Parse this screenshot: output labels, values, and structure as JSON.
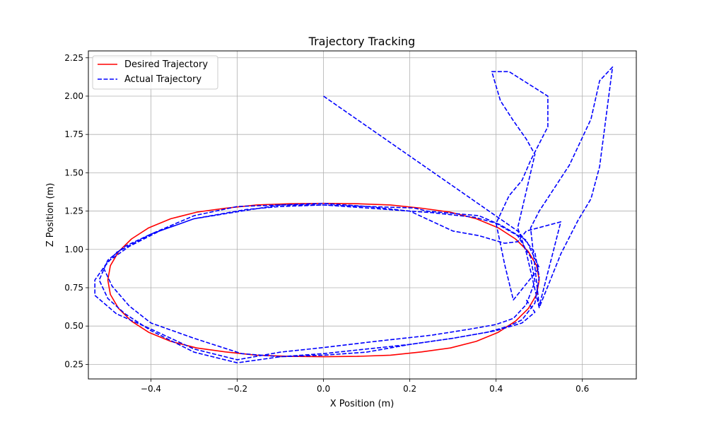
{
  "chart_data": {
    "type": "line",
    "title": "Trajectory Tracking",
    "xlabel": "X Position (m)",
    "ylabel": "Z Position (m)",
    "xlim": [
      -0.545,
      0.725
    ],
    "ylim": [
      0.155,
      2.295
    ],
    "xticks": [
      -0.4,
      -0.2,
      0.0,
      0.2,
      0.4,
      0.6
    ],
    "xtick_labels": [
      "−0.4",
      "−0.2",
      "0.0",
      "0.2",
      "0.4",
      "0.6"
    ],
    "yticks": [
      0.25,
      0.5,
      0.75,
      1.0,
      1.25,
      1.5,
      1.75,
      2.0,
      2.25
    ],
    "ytick_labels": [
      "0.25",
      "0.50",
      "0.75",
      "1.00",
      "1.25",
      "1.50",
      "1.75",
      "2.00",
      "2.25"
    ],
    "grid": true,
    "legend_position": "top-left",
    "series": [
      {
        "name": "Desired Trajectory",
        "color": "#ff0000",
        "style": "solid",
        "x": [
          0.5,
          0.494,
          0.475,
          0.445,
          0.405,
          0.354,
          0.294,
          0.227,
          0.155,
          0.078,
          0.0,
          -0.078,
          -0.155,
          -0.227,
          -0.294,
          -0.354,
          -0.405,
          -0.445,
          -0.475,
          -0.494,
          -0.5,
          -0.494,
          -0.475,
          -0.445,
          -0.405,
          -0.354,
          -0.294,
          -0.227,
          -0.155,
          -0.078,
          0.0,
          0.078,
          0.155,
          0.227,
          0.294,
          0.354,
          0.405,
          0.445,
          0.475,
          0.494,
          0.5
        ],
        "y": [
          0.8,
          0.894,
          0.985,
          1.068,
          1.141,
          1.2,
          1.243,
          1.269,
          1.29,
          1.298,
          1.3,
          1.298,
          1.29,
          1.269,
          1.243,
          1.2,
          1.141,
          1.068,
          0.985,
          0.894,
          0.8,
          0.706,
          0.615,
          0.532,
          0.459,
          0.4,
          0.357,
          0.331,
          0.31,
          0.302,
          0.3,
          0.302,
          0.31,
          0.331,
          0.357,
          0.4,
          0.459,
          0.532,
          0.615,
          0.706,
          0.8
        ]
      },
      {
        "name": "Actual Trajectory",
        "color": "#0000ff",
        "style": "dashed",
        "x": [
          0.0,
          0.45,
          0.49,
          0.5,
          0.49,
          0.46,
          0.43,
          0.38,
          0.3,
          0.2,
          0.1,
          0.0,
          -0.1,
          -0.2,
          -0.3,
          -0.4,
          -0.46,
          -0.5,
          -0.52,
          -0.5,
          -0.46,
          -0.4,
          -0.3,
          -0.18,
          -0.1,
          0.0,
          0.1,
          0.2,
          0.25,
          0.35,
          0.4,
          0.45,
          0.48,
          0.49,
          0.47,
          0.44,
          0.4,
          0.34,
          0.25,
          0.12,
          0.0,
          -0.1,
          -0.2,
          -0.3,
          -0.4,
          -0.48,
          -0.53,
          -0.53,
          -0.5,
          -0.45,
          -0.38,
          -0.3,
          -0.19,
          -0.1,
          0.0,
          0.1,
          0.21,
          0.24,
          0.36,
          0.41,
          0.47,
          0.5,
          0.44,
          0.42,
          0.4,
          0.43,
          0.46,
          0.48,
          0.52,
          0.52,
          0.43,
          0.39,
          0.41,
          0.44,
          0.47,
          0.49,
          0.45,
          0.47,
          0.5,
          0.55,
          0.59,
          0.62,
          0.64,
          0.67,
          0.64,
          0.62,
          0.57,
          0.5,
          0.48,
          0.5,
          0.55,
          0.47,
          0.45,
          0.42,
          0.36,
          0.3,
          0.2,
          0.1,
          0.0,
          -0.1,
          -0.2,
          -0.3,
          -0.4,
          -0.48,
          -0.51,
          -0.49,
          -0.45,
          -0.4,
          -0.3,
          -0.19,
          -0.1,
          0.0,
          0.1,
          0.2,
          0.3,
          0.4,
          0.46,
          0.49,
          0.47
        ],
        "y": [
          2.0,
          1.12,
          0.98,
          0.82,
          0.65,
          0.54,
          0.5,
          0.46,
          0.42,
          0.38,
          0.35,
          0.32,
          0.3,
          0.26,
          0.33,
          0.47,
          0.58,
          0.68,
          0.8,
          0.93,
          1.02,
          1.1,
          1.2,
          1.26,
          1.28,
          1.29,
          1.28,
          1.25,
          1.24,
          1.21,
          1.17,
          1.09,
          0.95,
          0.79,
          0.64,
          0.55,
          0.51,
          0.48,
          0.44,
          0.4,
          0.36,
          0.33,
          0.28,
          0.35,
          0.48,
          0.58,
          0.7,
          0.8,
          0.92,
          1.02,
          1.12,
          1.2,
          1.25,
          1.29,
          1.3,
          1.28,
          1.27,
          1.25,
          1.22,
          1.16,
          1.06,
          0.88,
          0.67,
          0.9,
          1.17,
          1.35,
          1.45,
          1.58,
          1.8,
          2.0,
          2.16,
          2.16,
          1.97,
          1.84,
          1.72,
          1.62,
          1.14,
          0.98,
          0.62,
          0.97,
          1.19,
          1.33,
          1.54,
          2.19,
          2.1,
          1.85,
          1.55,
          1.25,
          1.14,
          0.63,
          1.18,
          1.12,
          1.05,
          1.04,
          1.09,
          1.12,
          1.25,
          1.27,
          1.29,
          1.29,
          1.28,
          1.22,
          1.1,
          0.98,
          0.88,
          0.76,
          0.63,
          0.52,
          0.42,
          0.32,
          0.3,
          0.31,
          0.33,
          0.38,
          0.42,
          0.47,
          0.52,
          0.59,
          0.67
        ]
      }
    ]
  }
}
